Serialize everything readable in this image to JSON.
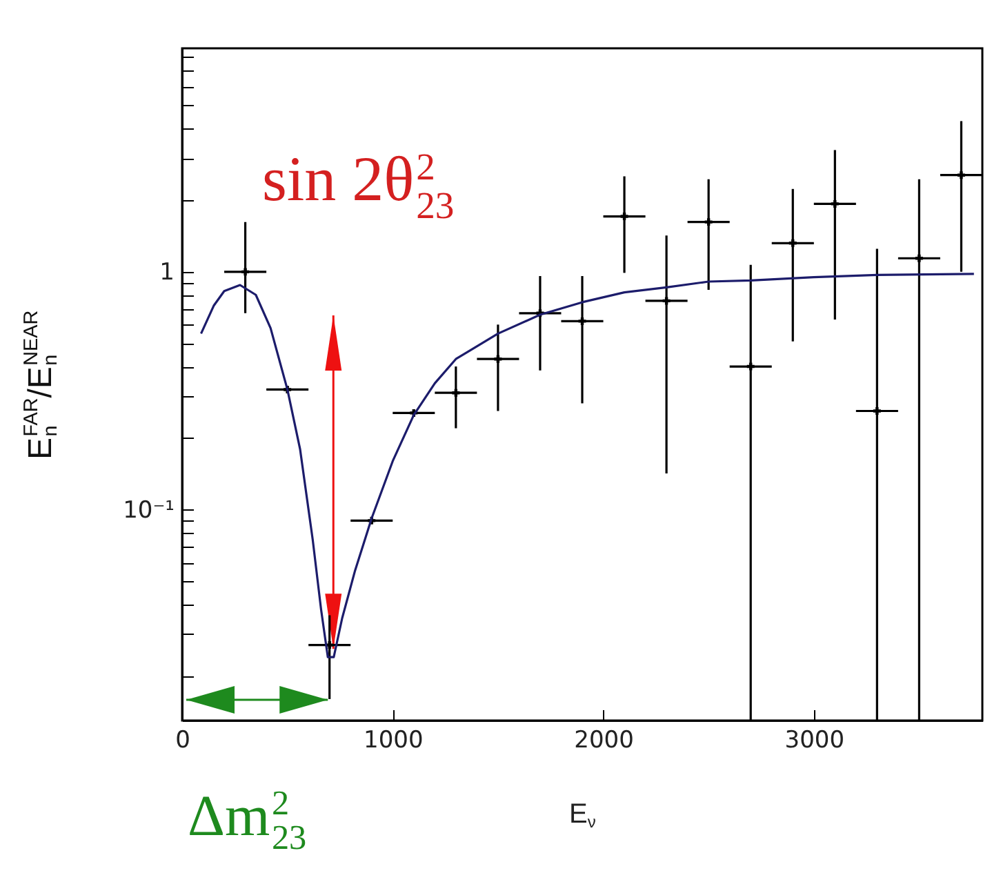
{
  "chart_data": {
    "type": "scatter",
    "xlabel": "E$_{ν}$",
    "ylabel": "E$_{n}$$^{FAR}$/E$_{n}$$^{NEAR}$",
    "annotations": [
      "sin 2θ$^{2}$$_{23}$",
      "Δm$^{2}$$_{23}$"
    ],
    "xlim": [
      0,
      3800
    ],
    "xticks": [
      0,
      1000,
      2000,
      3000
    ],
    "ylim": [
      0.013,
      8.7
    ],
    "log": "y",
    "yticks": [
      {
        "value": 0.02,
        "label": null
      },
      {
        "value": 0.03,
        "label": null
      },
      {
        "value": 0.04,
        "label": null
      },
      {
        "value": 0.05,
        "label": null
      },
      {
        "value": 0.06,
        "label": null
      },
      {
        "value": 0.07,
        "label": null
      },
      {
        "value": 0.08,
        "label": null
      },
      {
        "value": 0.09,
        "label": null
      },
      {
        "value": 0.1,
        "label": "10⁻¹"
      },
      {
        "value": 0.2,
        "label": null
      },
      {
        "value": 0.3,
        "label": null
      },
      {
        "value": 0.4,
        "label": null
      },
      {
        "value": 0.5,
        "label": null
      },
      {
        "value": 0.6,
        "label": null
      },
      {
        "value": 0.7,
        "label": null
      },
      {
        "value": 0.8,
        "label": null
      },
      {
        "value": 0.9,
        "label": null
      },
      {
        "value": 1,
        "label": "1"
      },
      {
        "value": 2,
        "label": null
      },
      {
        "value": 3,
        "label": null
      },
      {
        "value": 4,
        "label": null
      },
      {
        "value": 5,
        "label": null
      },
      {
        "value": 6,
        "label": null
      },
      {
        "value": 7,
        "label": null
      },
      {
        "value": 8,
        "label": null
      }
    ],
    "series": [
      {
        "type": "scatter",
        "color": "#000000",
        "marker": "cross",
        "x": [
          300,
          500,
          700,
          900,
          1100,
          1300,
          1500,
          1700,
          1900,
          2100,
          2300,
          2500,
          2700,
          2900,
          3100,
          3300,
          3500,
          3700
        ],
        "values": [
          1.0,
          0.32,
          0.027,
          0.09,
          0.255,
          0.31,
          0.43,
          0.67,
          0.62,
          1.71,
          0.755,
          1.62,
          0.4,
          1.32,
          1.93,
          0.26,
          1.14,
          2.55
        ],
        "errors": [
          [
            0.67,
            1.62
          ],
          null,
          [
            0.016,
            0.036
          ],
          null,
          null,
          [
            0.22,
            0.4
          ],
          [
            0.26,
            0.6
          ],
          [
            0.385,
            0.96
          ],
          [
            0.28,
            0.96
          ],
          [
            0.99,
            2.52
          ],
          [
            0.142,
            1.42
          ],
          [
            0.84,
            2.45
          ],
          [
            0.013,
            1.07
          ],
          [
            0.51,
            2.23
          ],
          [
            0.63,
            3.25
          ],
          [
            0.013,
            1.25
          ],
          [
            0.013,
            2.45
          ],
          [
            1.0,
            4.3
          ]
        ],
        "xerrors": [
          100,
          100,
          100,
          100,
          100,
          100,
          100,
          100,
          100,
          100,
          100,
          100,
          100,
          100,
          100,
          100,
          100,
          100
        ]
      },
      {
        "type": "line",
        "color": "#1c1c6b",
        "line_style": "solid",
        "marker": "none",
        "x": [
          90,
          150,
          200,
          275,
          350,
          420,
          500,
          560,
          620,
          660,
          692,
          720,
          760,
          820,
          900,
          1000,
          1100,
          1200,
          1300,
          1500,
          1700,
          1900,
          2100,
          2300,
          2500,
          2700,
          3000,
          3300,
          3760
        ],
        "values": [
          0.55,
          0.72,
          0.83,
          0.88,
          0.8,
          0.58,
          0.32,
          0.18,
          0.075,
          0.038,
          0.024,
          0.024,
          0.035,
          0.055,
          0.092,
          0.16,
          0.25,
          0.34,
          0.43,
          0.55,
          0.66,
          0.745,
          0.82,
          0.86,
          0.91,
          0.92,
          0.95,
          0.97,
          0.98
        ]
      }
    ]
  }
}
